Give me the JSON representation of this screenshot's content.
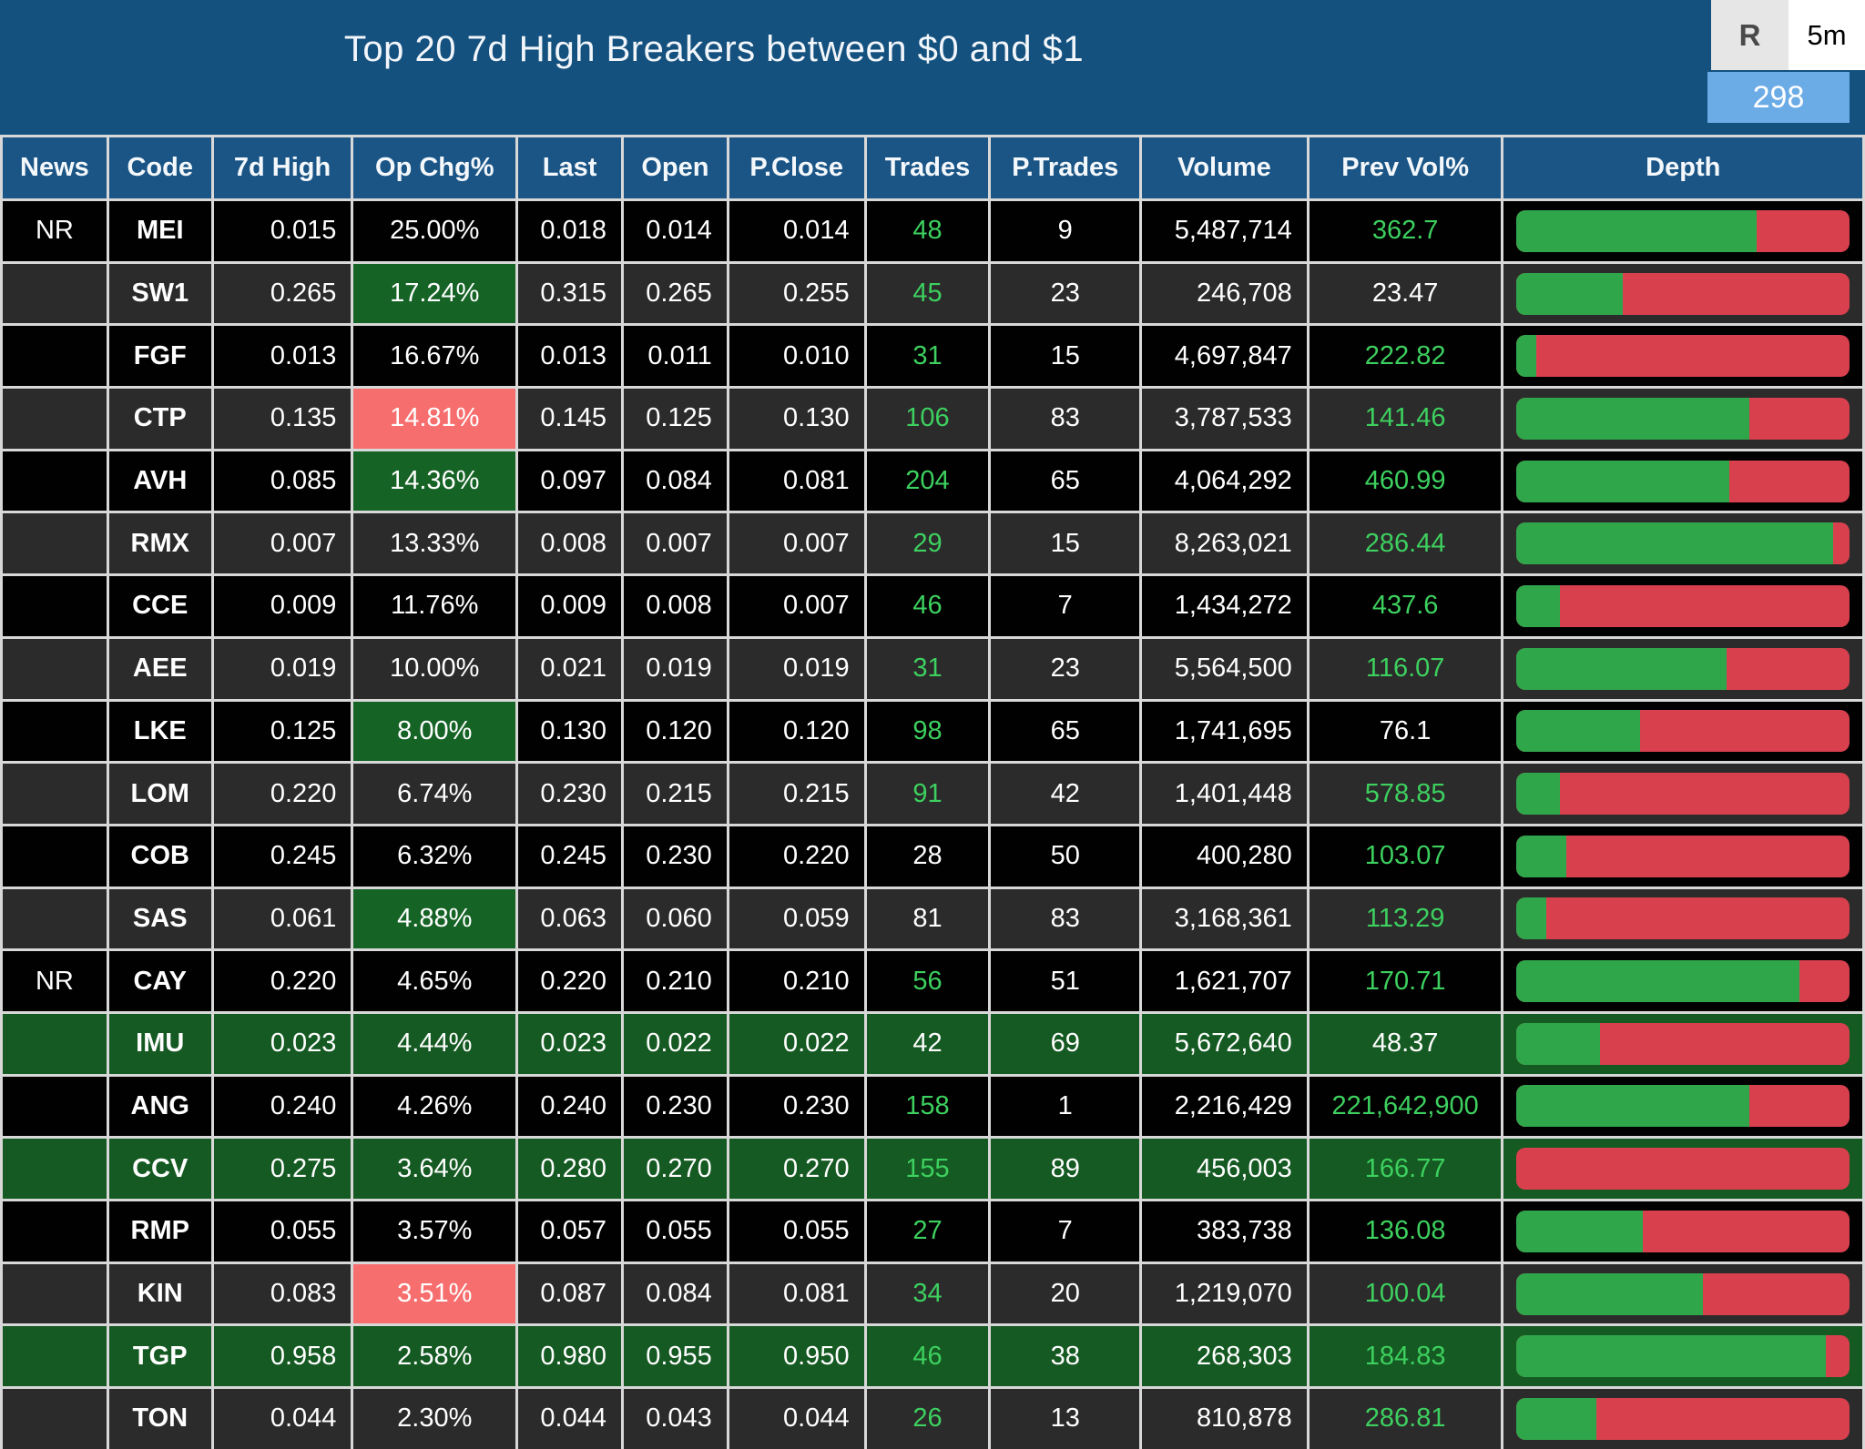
{
  "header": {
    "title": "Top 20 7d High Breakers between $0 and $1",
    "refresh_button": "R",
    "interval": "5m",
    "count_badge": "298"
  },
  "colors": {
    "titlebar_blue": "#14517f",
    "header_cell_blue": "#1a5586",
    "row_black": "#010101",
    "row_gray": "#2b2b2b",
    "row_green": "#155a22",
    "opchg_highlight_green": "#166326",
    "opchg_highlight_red": "#f76e6e",
    "value_green_text": "#3dd05f",
    "depth_bar_green": "#30a64b",
    "depth_bar_red": "#d9404e",
    "count_badge_blue": "#6babe6"
  },
  "table": {
    "columns": [
      "News",
      "Code",
      "7d High",
      "Op Chg%",
      "Last",
      "Open",
      "P.Close",
      "Trades",
      "P.Trades",
      "Volume",
      "Prev Vol%",
      "Depth"
    ],
    "rows": [
      {
        "news": "NR",
        "code": "MEI",
        "high": "0.015",
        "opchg": "25.00%",
        "opchg_hl": "none",
        "last": "0.018",
        "open": "0.014",
        "pclose": "0.014",
        "trades": "48",
        "trades_green": true,
        "ptrades": "9",
        "volume": "5,487,714",
        "prevvol": "362.7",
        "prevvol_green": true,
        "row_bg": "black",
        "depth_green_pct": 72
      },
      {
        "news": "",
        "code": "SW1",
        "high": "0.265",
        "opchg": "17.24%",
        "opchg_hl": "green",
        "last": "0.315",
        "open": "0.265",
        "pclose": "0.255",
        "trades": "45",
        "trades_green": true,
        "ptrades": "23",
        "volume": "246,708",
        "prevvol": "23.47",
        "prevvol_green": false,
        "row_bg": "gray",
        "depth_green_pct": 32
      },
      {
        "news": "",
        "code": "FGF",
        "high": "0.013",
        "opchg": "16.67%",
        "opchg_hl": "none",
        "last": "0.013",
        "open": "0.011",
        "pclose": "0.010",
        "trades": "31",
        "trades_green": true,
        "ptrades": "15",
        "volume": "4,697,847",
        "prevvol": "222.82",
        "prevvol_green": true,
        "row_bg": "black",
        "depth_green_pct": 6
      },
      {
        "news": "",
        "code": "CTP",
        "high": "0.135",
        "opchg": "14.81%",
        "opchg_hl": "red",
        "last": "0.145",
        "open": "0.125",
        "pclose": "0.130",
        "trades": "106",
        "trades_green": true,
        "ptrades": "83",
        "volume": "3,787,533",
        "prevvol": "141.46",
        "prevvol_green": true,
        "row_bg": "gray",
        "depth_green_pct": 70
      },
      {
        "news": "",
        "code": "AVH",
        "high": "0.085",
        "opchg": "14.36%",
        "opchg_hl": "green",
        "last": "0.097",
        "open": "0.084",
        "pclose": "0.081",
        "trades": "204",
        "trades_green": true,
        "ptrades": "65",
        "volume": "4,064,292",
        "prevvol": "460.99",
        "prevvol_green": true,
        "row_bg": "black",
        "depth_green_pct": 64
      },
      {
        "news": "",
        "code": "RMX",
        "high": "0.007",
        "opchg": "13.33%",
        "opchg_hl": "none",
        "last": "0.008",
        "open": "0.007",
        "pclose": "0.007",
        "trades": "29",
        "trades_green": true,
        "ptrades": "15",
        "volume": "8,263,021",
        "prevvol": "286.44",
        "prevvol_green": true,
        "row_bg": "gray",
        "depth_green_pct": 95
      },
      {
        "news": "",
        "code": "CCE",
        "high": "0.009",
        "opchg": "11.76%",
        "opchg_hl": "none",
        "last": "0.009",
        "open": "0.008",
        "pclose": "0.007",
        "trades": "46",
        "trades_green": true,
        "ptrades": "7",
        "volume": "1,434,272",
        "prevvol": "437.6",
        "prevvol_green": true,
        "row_bg": "black",
        "depth_green_pct": 13
      },
      {
        "news": "",
        "code": "AEE",
        "high": "0.019",
        "opchg": "10.00%",
        "opchg_hl": "none",
        "last": "0.021",
        "open": "0.019",
        "pclose": "0.019",
        "trades": "31",
        "trades_green": true,
        "ptrades": "23",
        "volume": "5,564,500",
        "prevvol": "116.07",
        "prevvol_green": true,
        "row_bg": "gray",
        "depth_green_pct": 63
      },
      {
        "news": "",
        "code": "LKE",
        "high": "0.125",
        "opchg": "8.00%",
        "opchg_hl": "green",
        "last": "0.130",
        "open": "0.120",
        "pclose": "0.120",
        "trades": "98",
        "trades_green": true,
        "ptrades": "65",
        "volume": "1,741,695",
        "prevvol": "76.1",
        "prevvol_green": false,
        "row_bg": "black",
        "depth_green_pct": 37
      },
      {
        "news": "",
        "code": "LOM",
        "high": "0.220",
        "opchg": "6.74%",
        "opchg_hl": "none",
        "last": "0.230",
        "open": "0.215",
        "pclose": "0.215",
        "trades": "91",
        "trades_green": true,
        "ptrades": "42",
        "volume": "1,401,448",
        "prevvol": "578.85",
        "prevvol_green": true,
        "row_bg": "gray",
        "depth_green_pct": 13
      },
      {
        "news": "",
        "code": "COB",
        "high": "0.245",
        "opchg": "6.32%",
        "opchg_hl": "none",
        "last": "0.245",
        "open": "0.230",
        "pclose": "0.220",
        "trades": "28",
        "trades_green": false,
        "ptrades": "50",
        "volume": "400,280",
        "prevvol": "103.07",
        "prevvol_green": true,
        "row_bg": "black",
        "depth_green_pct": 15
      },
      {
        "news": "",
        "code": "SAS",
        "high": "0.061",
        "opchg": "4.88%",
        "opchg_hl": "green",
        "last": "0.063",
        "open": "0.060",
        "pclose": "0.059",
        "trades": "81",
        "trades_green": false,
        "ptrades": "83",
        "volume": "3,168,361",
        "prevvol": "113.29",
        "prevvol_green": true,
        "row_bg": "gray",
        "depth_green_pct": 9
      },
      {
        "news": "NR",
        "code": "CAY",
        "high": "0.220",
        "opchg": "4.65%",
        "opchg_hl": "none",
        "last": "0.220",
        "open": "0.210",
        "pclose": "0.210",
        "trades": "56",
        "trades_green": true,
        "ptrades": "51",
        "volume": "1,621,707",
        "prevvol": "170.71",
        "prevvol_green": true,
        "row_bg": "black",
        "depth_green_pct": 85
      },
      {
        "news": "",
        "code": "IMU",
        "high": "0.023",
        "opchg": "4.44%",
        "opchg_hl": "none",
        "last": "0.023",
        "open": "0.022",
        "pclose": "0.022",
        "trades": "42",
        "trades_green": false,
        "ptrades": "69",
        "volume": "5,672,640",
        "prevvol": "48.37",
        "prevvol_green": false,
        "row_bg": "green",
        "depth_green_pct": 25
      },
      {
        "news": "",
        "code": "ANG",
        "high": "0.240",
        "opchg": "4.26%",
        "opchg_hl": "none",
        "last": "0.240",
        "open": "0.230",
        "pclose": "0.230",
        "trades": "158",
        "trades_green": true,
        "ptrades": "1",
        "volume": "2,216,429",
        "prevvol": "221,642,900",
        "prevvol_green": true,
        "row_bg": "black",
        "depth_green_pct": 70
      },
      {
        "news": "",
        "code": "CCV",
        "high": "0.275",
        "opchg": "3.64%",
        "opchg_hl": "none",
        "last": "0.280",
        "open": "0.270",
        "pclose": "0.270",
        "trades": "155",
        "trades_green": true,
        "ptrades": "89",
        "volume": "456,003",
        "prevvol": "166.77",
        "prevvol_green": true,
        "row_bg": "green",
        "depth_green_pct": 0
      },
      {
        "news": "",
        "code": "RMP",
        "high": "0.055",
        "opchg": "3.57%",
        "opchg_hl": "none",
        "last": "0.057",
        "open": "0.055",
        "pclose": "0.055",
        "trades": "27",
        "trades_green": true,
        "ptrades": "7",
        "volume": "383,738",
        "prevvol": "136.08",
        "prevvol_green": true,
        "row_bg": "black",
        "depth_green_pct": 38
      },
      {
        "news": "",
        "code": "KIN",
        "high": "0.083",
        "opchg": "3.51%",
        "opchg_hl": "red",
        "last": "0.087",
        "open": "0.084",
        "pclose": "0.081",
        "trades": "34",
        "trades_green": true,
        "ptrades": "20",
        "volume": "1,219,070",
        "prevvol": "100.04",
        "prevvol_green": true,
        "row_bg": "gray",
        "depth_green_pct": 56
      },
      {
        "news": "",
        "code": "TGP",
        "high": "0.958",
        "opchg": "2.58%",
        "opchg_hl": "none",
        "last": "0.980",
        "open": "0.955",
        "pclose": "0.950",
        "trades": "46",
        "trades_green": true,
        "ptrades": "38",
        "volume": "268,303",
        "prevvol": "184.83",
        "prevvol_green": true,
        "row_bg": "green",
        "depth_green_pct": 93
      },
      {
        "news": "",
        "code": "TON",
        "high": "0.044",
        "opchg": "2.30%",
        "opchg_hl": "none",
        "last": "0.044",
        "open": "0.043",
        "pclose": "0.044",
        "trades": "26",
        "trades_green": true,
        "ptrades": "13",
        "volume": "810,878",
        "prevvol": "286.81",
        "prevvol_green": true,
        "row_bg": "gray",
        "depth_green_pct": 24
      }
    ]
  }
}
